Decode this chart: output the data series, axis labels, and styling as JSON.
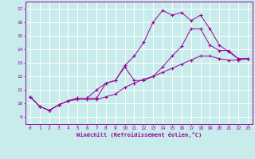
{
  "xlabel": "Windchill (Refroidissement éolien,°C)",
  "bg_color": "#c8ecec",
  "line_color": "#990099",
  "grid_color": "#ffffff",
  "x_ticks": [
    0,
    1,
    2,
    3,
    4,
    5,
    6,
    7,
    8,
    9,
    10,
    11,
    12,
    13,
    14,
    15,
    16,
    17,
    18,
    19,
    20,
    21,
    22,
    23
  ],
  "y_ticks": [
    9,
    10,
    11,
    12,
    13,
    14,
    15,
    16,
    17
  ],
  "xlim": [
    -0.5,
    23.5
  ],
  "ylim": [
    8.5,
    17.5
  ],
  "series": {
    "line_top_x": [
      0,
      1,
      2,
      3,
      4,
      5,
      6,
      7,
      8,
      9,
      10,
      11,
      12,
      13,
      14,
      15,
      16,
      17,
      18,
      19,
      20,
      21,
      22,
      23
    ],
    "line_top_y": [
      10.5,
      9.8,
      9.5,
      9.9,
      10.2,
      10.4,
      10.4,
      10.4,
      11.5,
      11.7,
      12.8,
      13.5,
      14.5,
      16.0,
      16.85,
      16.5,
      16.7,
      16.1,
      16.5,
      15.5,
      14.3,
      13.8,
      13.3,
      13.3
    ],
    "line_mid_x": [
      0,
      1,
      2,
      3,
      4,
      5,
      6,
      7,
      8,
      9,
      10,
      11,
      12,
      13,
      14,
      15,
      16,
      17,
      18,
      19,
      20,
      21,
      22,
      23
    ],
    "line_mid_y": [
      10.5,
      9.8,
      9.5,
      9.9,
      10.2,
      10.4,
      10.4,
      11.0,
      11.5,
      11.7,
      12.7,
      11.7,
      11.7,
      12.0,
      12.7,
      13.5,
      14.2,
      15.5,
      15.5,
      14.3,
      13.9,
      13.9,
      13.3,
      13.3
    ],
    "line_bot_x": [
      0,
      1,
      2,
      3,
      4,
      5,
      6,
      7,
      8,
      9,
      10,
      11,
      12,
      13,
      14,
      15,
      16,
      17,
      18,
      19,
      20,
      21,
      22,
      23
    ],
    "line_bot_y": [
      10.5,
      9.8,
      9.5,
      9.9,
      10.2,
      10.3,
      10.3,
      10.3,
      10.5,
      10.7,
      11.2,
      11.5,
      11.8,
      12.0,
      12.3,
      12.6,
      12.9,
      13.2,
      13.5,
      13.5,
      13.3,
      13.2,
      13.2,
      13.3
    ]
  }
}
